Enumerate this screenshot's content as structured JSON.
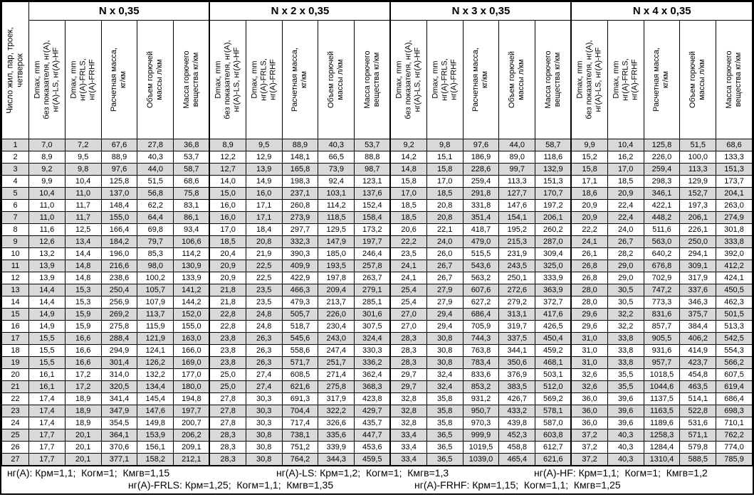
{
  "table": {
    "corner_header": "Число жил, пар, троек,\nчетверок",
    "groups": [
      {
        "title": "N x 0,35"
      },
      {
        "title": "N x 2 x 0,35"
      },
      {
        "title": "N x 3 x 0,35"
      },
      {
        "title": "N x 4 x 0,35"
      }
    ],
    "sub_columns": [
      "Dmax, mm\nбез показателя, нг(А),\nнг(А)-LS, нг(А)-HF",
      "Dmax, mm\nнг(А)-FRLS,\nнг(А)-FRHF",
      "Расчетная масса,\nкг/км",
      "Объем горючей\nмассы л/км",
      "Масса горючего\nвещества кг/км"
    ],
    "rows": [
      [
        "1",
        "7,0",
        "7,2",
        "67,6",
        "27,8",
        "36,8",
        "8,9",
        "9,5",
        "88,9",
        "40,3",
        "53,7",
        "9,2",
        "9,8",
        "97,6",
        "44,0",
        "58,7",
        "9,9",
        "10,4",
        "125,8",
        "51,5",
        "68,6"
      ],
      [
        "2",
        "8,9",
        "9,5",
        "88,9",
        "40,3",
        "53,7",
        "12,2",
        "12,9",
        "148,1",
        "66,5",
        "88,8",
        "14,2",
        "15,1",
        "186,9",
        "89,0",
        "118,6",
        "15,2",
        "16,2",
        "226,0",
        "100,0",
        "133,3"
      ],
      [
        "3",
        "9,2",
        "9,8",
        "97,6",
        "44,0",
        "58,7",
        "12,7",
        "13,9",
        "165,8",
        "73,9",
        "98,7",
        "14,8",
        "15,8",
        "228,6",
        "99,7",
        "132,9",
        "15,8",
        "17,0",
        "259,4",
        "113,3",
        "151,3"
      ],
      [
        "4",
        "9,9",
        "10,4",
        "125,8",
        "51,5",
        "68,6",
        "14,0",
        "14,9",
        "198,3",
        "92,4",
        "123,1",
        "15,8",
        "17,0",
        "259,4",
        "113,3",
        "151,3",
        "17,1",
        "18,5",
        "298,3",
        "129,9",
        "173,7"
      ],
      [
        "5",
        "10,4",
        "11,0",
        "137,0",
        "56,8",
        "75,8",
        "15,0",
        "16,0",
        "237,1",
        "103,1",
        "137,6",
        "17,0",
        "18,5",
        "291,8",
        "127,7",
        "170,7",
        "18,6",
        "20,9",
        "346,1",
        "152,7",
        "204,1"
      ],
      [
        "6",
        "11,0",
        "11,7",
        "148,4",
        "62,2",
        "83,1",
        "16,0",
        "17,1",
        "260,8",
        "114,2",
        "152,4",
        "18,5",
        "20,8",
        "331,8",
        "147,6",
        "197,2",
        "20,9",
        "22,4",
        "422,1",
        "197,3",
        "263,0"
      ],
      [
        "7",
        "11,0",
        "11,7",
        "155,0",
        "64,4",
        "86,1",
        "16,0",
        "17,1",
        "273,9",
        "118,5",
        "158,4",
        "18,5",
        "20,8",
        "351,4",
        "154,1",
        "206,1",
        "20,9",
        "22,4",
        "448,2",
        "206,1",
        "274,9"
      ],
      [
        "8",
        "11,6",
        "12,5",
        "166,4",
        "69,8",
        "93,4",
        "17,0",
        "18,4",
        "297,7",
        "129,5",
        "173,2",
        "20,6",
        "22,1",
        "418,7",
        "195,2",
        "260,2",
        "22,2",
        "24,0",
        "511,6",
        "226,1",
        "301,8"
      ],
      [
        "9",
        "12,6",
        "13,4",
        "184,2",
        "79,7",
        "106,6",
        "18,5",
        "20,8",
        "332,3",
        "147,9",
        "197,7",
        "22,2",
        "24,0",
        "479,0",
        "215,3",
        "287,0",
        "24,1",
        "26,7",
        "563,0",
        "250,0",
        "333,8"
      ],
      [
        "10",
        "13,2",
        "14,4",
        "196,0",
        "85,3",
        "114,2",
        "20,4",
        "21,9",
        "390,3",
        "185,0",
        "246,4",
        "23,5",
        "26,0",
        "515,5",
        "231,9",
        "309,4",
        "26,1",
        "28,2",
        "640,2",
        "294,1",
        "392,0"
      ],
      [
        "11",
        "13,9",
        "14,8",
        "216,6",
        "98,0",
        "130,9",
        "20,9",
        "22,5",
        "409,9",
        "193,5",
        "257,8",
        "24,1",
        "26,7",
        "543,6",
        "243,5",
        "325,0",
        "26,8",
        "29,0",
        "676,8",
        "309,1",
        "412,2"
      ],
      [
        "12",
        "13,9",
        "14,8",
        "238,6",
        "100,2",
        "133,9",
        "20,9",
        "22,5",
        "422,9",
        "197,8",
        "263,7",
        "24,1",
        "26,7",
        "563,2",
        "250,1",
        "333,9",
        "26,8",
        "29,0",
        "702,9",
        "317,9",
        "424,1"
      ],
      [
        "13",
        "14,4",
        "15,3",
        "250,4",
        "105,7",
        "141,2",
        "21,8",
        "23,5",
        "466,3",
        "209,4",
        "279,1",
        "25,4",
        "27,9",
        "607,6",
        "272,6",
        "363,9",
        "28,0",
        "30,5",
        "747,2",
        "337,6",
        "450,5"
      ],
      [
        "14",
        "14,4",
        "15,3",
        "256,9",
        "107,9",
        "144,2",
        "21,8",
        "23,5",
        "479,3",
        "213,7",
        "285,1",
        "25,4",
        "27,9",
        "627,2",
        "279,2",
        "372,7",
        "28,0",
        "30,5",
        "773,3",
        "346,3",
        "462,3"
      ],
      [
        "15",
        "14,9",
        "15,9",
        "269,2",
        "113,7",
        "152,0",
        "22,8",
        "24,8",
        "505,7",
        "226,0",
        "301,6",
        "27,0",
        "29,4",
        "686,4",
        "313,1",
        "417,6",
        "29,6",
        "32,2",
        "831,6",
        "375,7",
        "501,5"
      ],
      [
        "16",
        "14,9",
        "15,9",
        "275,8",
        "115,9",
        "155,0",
        "22,8",
        "24,8",
        "518,7",
        "230,4",
        "307,5",
        "27,0",
        "29,4",
        "705,9",
        "319,7",
        "426,5",
        "29,6",
        "32,2",
        "857,7",
        "384,4",
        "513,3"
      ],
      [
        "17",
        "15,5",
        "16,6",
        "288,4",
        "121,9",
        "163,0",
        "23,8",
        "26,3",
        "545,6",
        "243,0",
        "324,4",
        "28,3",
        "30,8",
        "744,3",
        "337,5",
        "450,4",
        "31,0",
        "33,8",
        "905,5",
        "406,2",
        "542,5"
      ],
      [
        "18",
        "15,5",
        "16,6",
        "294,9",
        "124,1",
        "166,0",
        "23,8",
        "26,3",
        "558,6",
        "247,4",
        "330,3",
        "28,3",
        "30,8",
        "763,8",
        "344,1",
        "459,2",
        "31,0",
        "33,8",
        "931,6",
        "414,9",
        "554,3"
      ],
      [
        "19",
        "15,5",
        "16,6",
        "301,4",
        "126,2",
        "169,0",
        "23,8",
        "26,3",
        "571,7",
        "251,7",
        "336,2",
        "28,3",
        "30,8",
        "783,4",
        "350,6",
        "468,1",
        "31,0",
        "33,8",
        "957,7",
        "423,7",
        "566,2"
      ],
      [
        "20",
        "16,1",
        "17,2",
        "314,0",
        "132,2",
        "177,0",
        "25,0",
        "27,4",
        "608,5",
        "271,4",
        "362,4",
        "29,7",
        "32,4",
        "833,6",
        "376,9",
        "503,1",
        "32,6",
        "35,5",
        "1018,5",
        "454,8",
        "607,5"
      ],
      [
        "21",
        "16,1",
        "17,2",
        "320,5",
        "134,4",
        "180,0",
        "25,0",
        "27,4",
        "621,6",
        "275,8",
        "368,3",
        "29,7",
        "32,4",
        "853,2",
        "383,5",
        "512,0",
        "32,6",
        "35,5",
        "1044,6",
        "463,5",
        "619,4"
      ],
      [
        "22",
        "17,4",
        "18,9",
        "341,4",
        "145,4",
        "194,8",
        "27,8",
        "30,3",
        "691,3",
        "317,9",
        "423,8",
        "32,8",
        "35,8",
        "931,2",
        "426,7",
        "569,2",
        "36,0",
        "39,6",
        "1137,5",
        "514,1",
        "686,4"
      ],
      [
        "23",
        "17,4",
        "18,9",
        "347,9",
        "147,6",
        "197,7",
        "27,8",
        "30,3",
        "704,4",
        "322,2",
        "429,7",
        "32,8",
        "35,8",
        "950,7",
        "433,2",
        "578,1",
        "36,0",
        "39,6",
        "1163,5",
        "522,8",
        "698,3"
      ],
      [
        "24",
        "17,4",
        "18,9",
        "354,5",
        "149,8",
        "200,7",
        "27,8",
        "30,3",
        "717,4",
        "326,6",
        "435,7",
        "32,8",
        "35,8",
        "970,3",
        "439,8",
        "587,0",
        "36,0",
        "39,6",
        "1189,6",
        "531,6",
        "710,1"
      ],
      [
        "25",
        "17,7",
        "20,1",
        "364,1",
        "153,9",
        "206,2",
        "28,3",
        "30,8",
        "738,1",
        "335,6",
        "447,7",
        "33,4",
        "36,5",
        "999,9",
        "452,3",
        "603,8",
        "37,2",
        "40,3",
        "1258,3",
        "571,1",
        "762,2"
      ],
      [
        "26",
        "17,7",
        "20,1",
        "370,6",
        "156,1",
        "209,1",
        "28,3",
        "30,8",
        "751,2",
        "339,9",
        "453,6",
        "33,4",
        "36,5",
        "1019,5",
        "458,8",
        "612,7",
        "37,2",
        "40,3",
        "1284,4",
        "579,8",
        "774,0"
      ],
      [
        "27",
        "17,7",
        "20,1",
        "377,1",
        "158,2",
        "212,1",
        "28,3",
        "30,8",
        "764,2",
        "344,3",
        "459,5",
        "33,4",
        "36,5",
        "1039,0",
        "465,4",
        "621,6",
        "37,2",
        "40,3",
        "1310,4",
        "588,5",
        "785,9"
      ]
    ],
    "footnotes": {
      "line1": [
        "нг(А): Крм=1,1;  Когм=1;  Кмгв=1,15",
        "нг(А)-LS: Крм=1,2;  Когм=1;  Кмгв=1,3",
        "нг(А)-HF: Крм=1,1;  Когм=1;  Кмгв=1,2"
      ],
      "line2": [
        "нг(А)-FRLS: Крм=1,25;  Когм=1,1;  Кмгв=1,35",
        "нг(А)-FRHF: Крм=1,15;  Когм=1,1;  Кмгв=1,25"
      ]
    }
  },
  "colors": {
    "row_stripe": "#d9d9d9",
    "row_plain": "#ffffff",
    "border": "#000000"
  }
}
